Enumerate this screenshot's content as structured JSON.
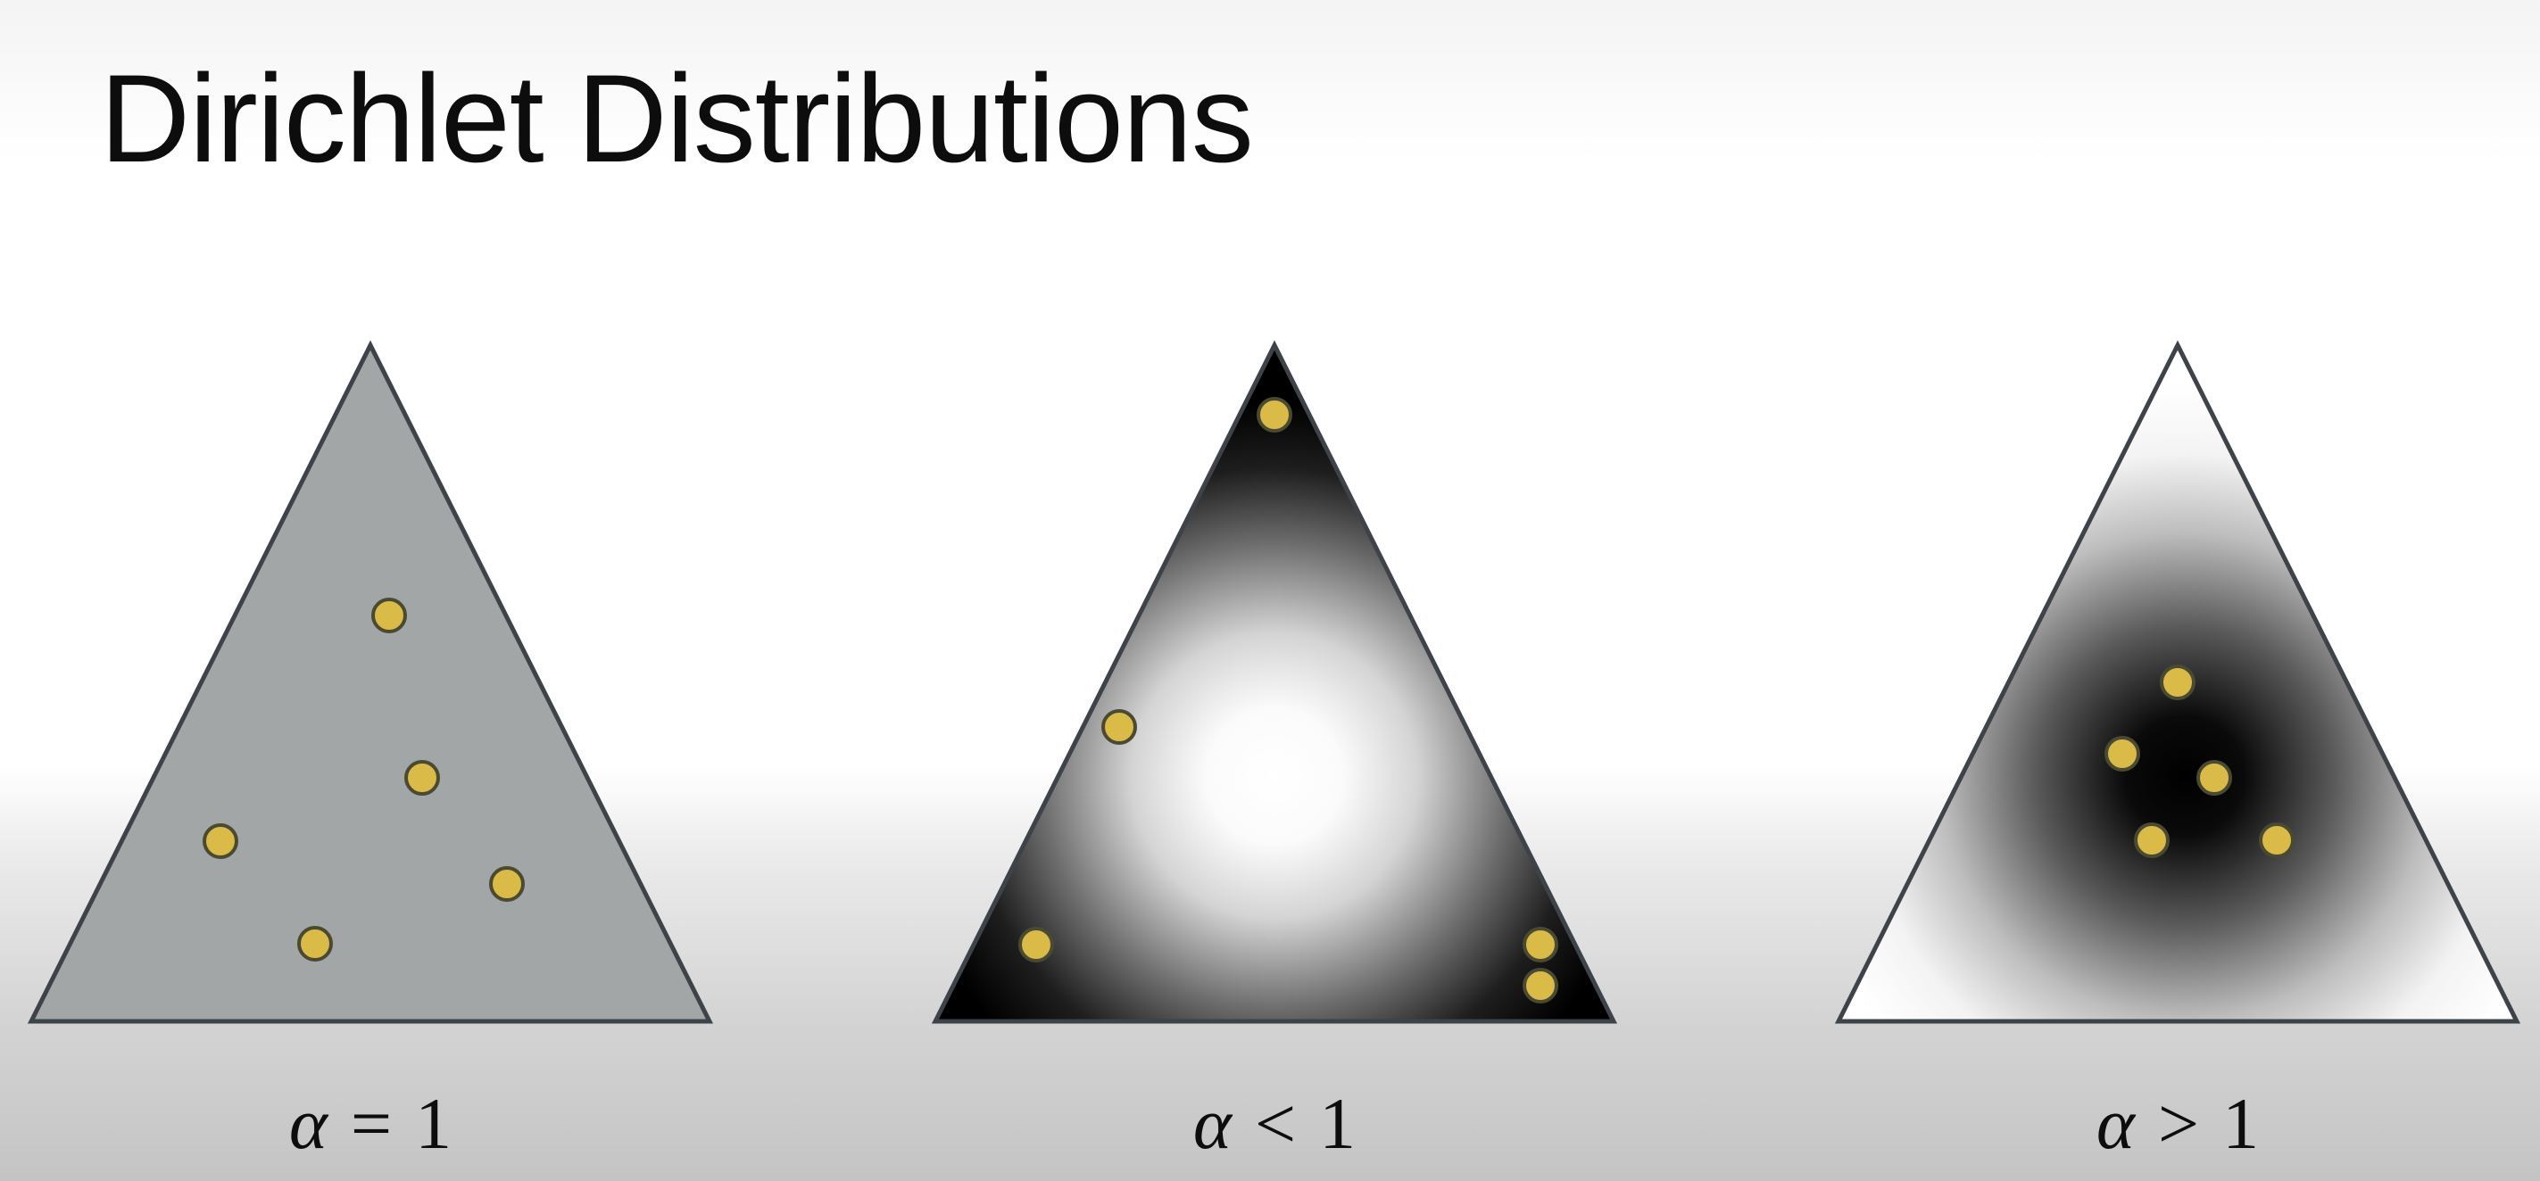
{
  "slide": {
    "title": "Dirichlet Distributions"
  },
  "panels": [
    {
      "id": "uniform",
      "label": {
        "symbol": "α",
        "relation": "=",
        "value": "1"
      },
      "shading": "uniform gray",
      "sample_count": 5
    },
    {
      "id": "sparse",
      "label": {
        "symbol": "α",
        "relation": "<",
        "value": "1"
      },
      "shading": "dark at corners, light center",
      "sample_count": 5
    },
    {
      "id": "concentrated",
      "label": {
        "symbol": "α",
        "relation": ">",
        "value": "1"
      },
      "shading": "dark center, light corners",
      "sample_count": 5
    }
  ],
  "colors": {
    "sample_dot": "#dbbb48",
    "triangle_edge": "#3d4349",
    "uniform_fill": "#a2a6a6"
  }
}
